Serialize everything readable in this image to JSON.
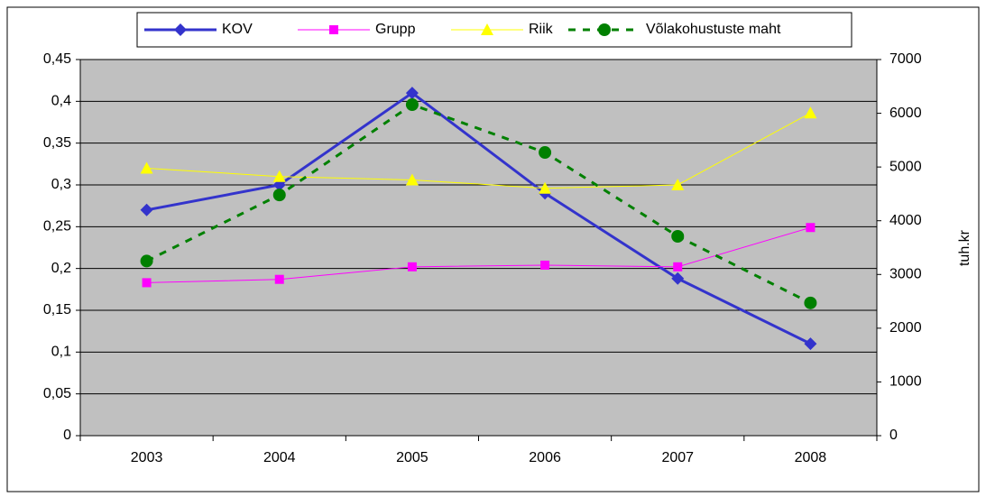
{
  "chart_data": {
    "type": "line",
    "categories": [
      "2003",
      "2004",
      "2005",
      "2006",
      "2007",
      "2008"
    ],
    "series": [
      {
        "name": "KOV",
        "color": "#3333cc",
        "marker": "diamond",
        "line_width": 3,
        "dashed": false,
        "values": [
          0.27,
          0.3,
          0.41,
          0.29,
          0.188,
          0.11
        ]
      },
      {
        "name": "Grupp",
        "color": "#ff00ff",
        "marker": "square",
        "line_width": 1,
        "dashed": false,
        "values": [
          0.183,
          0.187,
          0.202,
          0.204,
          0.202,
          0.249
        ]
      },
      {
        "name": "Riik",
        "color": "#ffff00",
        "marker": "triangle",
        "line_width": 1,
        "dashed": false,
        "values": [
          0.32,
          0.31,
          0.306,
          0.296,
          0.3,
          0.386
        ]
      },
      {
        "name": "Võlakohustuste maht",
        "color": "#008000",
        "marker": "circle",
        "line_width": 3,
        "dashed": true,
        "axis": "y2",
        "values": [
          3250,
          4480,
          6160,
          5270,
          3710,
          2470
        ]
      }
    ],
    "ylim": [
      0,
      0.45
    ],
    "yticks": [
      {
        "value": 0,
        "label": "0"
      },
      {
        "value": 0.05,
        "label": "0,05"
      },
      {
        "value": 0.1,
        "label": "0,1"
      },
      {
        "value": 0.15,
        "label": "0,15"
      },
      {
        "value": 0.2,
        "label": "0,2"
      },
      {
        "value": 0.25,
        "label": "0,25"
      },
      {
        "value": 0.3,
        "label": "0,3"
      },
      {
        "value": 0.35,
        "label": "0,35"
      },
      {
        "value": 0.4,
        "label": "0,4"
      },
      {
        "value": 0.45,
        "label": "0,45"
      }
    ],
    "y2lim": [
      0,
      7000
    ],
    "y2ticks": [
      0,
      1000,
      2000,
      3000,
      4000,
      5000,
      6000,
      7000
    ],
    "y2label": "tuh.kr",
    "grid": true,
    "legend": "top"
  }
}
